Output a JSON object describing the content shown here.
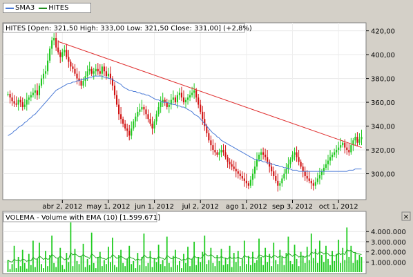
{
  "legend": {
    "items": [
      {
        "name": "SMA3",
        "color": "#4a7ad6"
      },
      {
        "name": "HITES",
        "color": "#1f8c1f"
      }
    ]
  },
  "price_panel": {
    "title": "HITES [Open: 321,50  High: 333,00  Low: 321,50  Close: 331,00] (+2,8%)"
  },
  "volume_panel": {
    "title": "VOLEMA - Volume with EMA (10) [1.599.671]",
    "close_label": "×"
  },
  "chart_data": [
    {
      "type": "candlestick",
      "title": "HITES [Open: 321,50  High: 333,00  Low: 321,50  Close: 331,00] (+2,8%)",
      "ylim": [
        280,
        425
      ],
      "y_ticks": [
        "420,00",
        "400,00",
        "380,00",
        "360,00",
        "340,00",
        "320,00",
        "300,00"
      ],
      "y_tick_values": [
        420,
        400,
        380,
        360,
        340,
        320,
        300
      ],
      "x_ticks": [
        "abr 2, 2012",
        "may 1, 2012",
        "jun 1, 2012",
        "jul 2, 2012",
        "ago 1, 2012",
        "sep 3, 2012",
        "oct 1, 2012"
      ],
      "x_tick_index": [
        26,
        48,
        70,
        92,
        114,
        136,
        158
      ],
      "n_days": 170,
      "close": [
        367,
        364,
        361,
        359,
        358,
        362,
        360,
        356,
        358,
        362,
        364,
        366,
        368,
        370,
        366,
        374,
        380,
        384,
        386,
        395,
        405,
        412,
        414,
        406,
        402,
        398,
        402,
        404,
        398,
        394,
        390,
        388,
        384,
        380,
        378,
        374,
        378,
        382,
        386,
        388,
        384,
        386,
        388,
        386,
        384,
        390,
        386,
        382,
        384,
        380,
        374,
        366,
        358,
        350,
        346,
        342,
        338,
        336,
        332,
        338,
        344,
        348,
        352,
        354,
        356,
        354,
        350,
        346,
        342,
        338,
        344,
        350,
        356,
        360,
        362,
        360,
        356,
        358,
        362,
        364,
        360,
        366,
        368,
        364,
        360,
        362,
        364,
        366,
        368,
        370,
        364,
        358,
        352,
        346,
        340,
        334,
        328,
        324,
        320,
        318,
        316,
        318,
        320,
        318,
        314,
        310,
        308,
        306,
        304,
        302,
        300,
        298,
        296,
        294,
        292,
        290,
        295,
        300,
        306,
        312,
        316,
        318,
        316,
        314,
        310,
        306,
        302,
        298,
        294,
        290,
        292,
        296,
        300,
        304,
        308,
        312,
        316,
        318,
        314,
        310,
        306,
        302,
        298,
        296,
        294,
        292,
        290,
        293,
        296,
        299,
        302,
        305,
        308,
        311,
        314,
        316,
        318,
        320,
        322,
        324,
        326,
        322,
        320,
        318,
        324,
        328,
        331,
        326,
        329,
        331
      ],
      "sma3": [
        332,
        333,
        334,
        336,
        337,
        339,
        340,
        341,
        343,
        344,
        346,
        347,
        349,
        350,
        352,
        354,
        356,
        358,
        360,
        362,
        364,
        366,
        368,
        370,
        371,
        372,
        373,
        374,
        375,
        376,
        376,
        377,
        377,
        378,
        378,
        379,
        379,
        380,
        380,
        381,
        381,
        382,
        382,
        382,
        382,
        382,
        381,
        381,
        380,
        380,
        379,
        378,
        377,
        376,
        375,
        373,
        372,
        371,
        370,
        370,
        369,
        369,
        368,
        368,
        367,
        367,
        366,
        366,
        365,
        364,
        363,
        362,
        362,
        361,
        360,
        360,
        360,
        359,
        359,
        358,
        358,
        357,
        357,
        356,
        356,
        355,
        354,
        353,
        352,
        350,
        349,
        348,
        346,
        344,
        342,
        340,
        338,
        336,
        334,
        333,
        331,
        330,
        328,
        327,
        326,
        325,
        324,
        323,
        322,
        321,
        320,
        319,
        318,
        317,
        316,
        315,
        314,
        313,
        312,
        312,
        311,
        311,
        310,
        310,
        309,
        309,
        308,
        308,
        307,
        307,
        306,
        306,
        305,
        305,
        304,
        304,
        303,
        303,
        303,
        302,
        302,
        302,
        302,
        302,
        302,
        302,
        302,
        302,
        302,
        302,
        302,
        302,
        302,
        302,
        302,
        302,
        302,
        302,
        302,
        302,
        302,
        302,
        302,
        303,
        303,
        303,
        304,
        304,
        304,
        304
      ],
      "trendline": {
        "start": [
          24,
          411
        ],
        "end": [
          170,
          322
        ]
      }
    },
    {
      "type": "bar",
      "title": "VOLEMA - Volume with EMA (10) [1.599.671]",
      "ylim": [
        0,
        4900000
      ],
      "y_ticks": [
        "4.000.000",
        "3.000.000",
        "2.000.000",
        "1.000.000"
      ],
      "y_tick_values": [
        4000000,
        3000000,
        2000000,
        1000000
      ],
      "volumes": [
        1200000,
        300000,
        800000,
        2600000,
        400000,
        1500000,
        600000,
        2200000,
        900000,
        350000,
        1800000,
        700000,
        3100000,
        500000,
        1300000,
        2900000,
        800000,
        400000,
        2100000,
        600000,
        1700000,
        3600000,
        900000,
        500000,
        1400000,
        2400000,
        700000,
        300000,
        1900000,
        1000000,
        4900000,
        600000,
        2300000,
        1100000,
        800000,
        1600000,
        2800000,
        500000,
        1300000,
        700000,
        3900000,
        900000,
        400000,
        1500000,
        2000000,
        600000,
        1200000,
        800000,
        2500000,
        1000000,
        3400000,
        700000,
        500000,
        1700000,
        2200000,
        900000,
        600000,
        1300000,
        2600000,
        800000,
        1100000,
        400000,
        1900000,
        700000,
        1500000,
        3800000,
        600000,
        900000,
        2100000,
        500000,
        1400000,
        1000000,
        2700000,
        800000,
        1200000,
        600000,
        3500000,
        900000,
        500000,
        1600000,
        2200000,
        700000,
        1100000,
        400000,
        1800000,
        900000,
        2500000,
        600000,
        1300000,
        3000000,
        700000,
        1500000,
        1000000,
        2000000,
        3600000,
        800000,
        1200000,
        2400000,
        900000,
        600000,
        1700000,
        1100000,
        2300000,
        700000,
        1400000,
        800000,
        2600000,
        500000,
        1900000,
        1000000,
        2100000,
        600000,
        1300000,
        3100000,
        800000,
        1600000,
        700000,
        2000000,
        900000,
        1200000,
        3300000,
        1500000,
        700000,
        2400000,
        1000000,
        1800000,
        600000,
        2900000,
        1200000,
        800000,
        2200000,
        1500000,
        700000,
        1900000,
        3500000,
        1100000,
        800000,
        2700000,
        1300000,
        600000,
        2000000,
        1600000,
        900000,
        2500000,
        1200000,
        3800000,
        1400000,
        2300000,
        900000,
        3100000,
        1700000,
        1000000,
        2600000,
        1300000,
        700000,
        2100000,
        1100000,
        1800000,
        3200000,
        900000,
        2400000,
        1200000,
        4400000,
        1500000,
        2600000,
        900000,
        1900000,
        1200000,
        1700000,
        1500000
      ]
    }
  ]
}
